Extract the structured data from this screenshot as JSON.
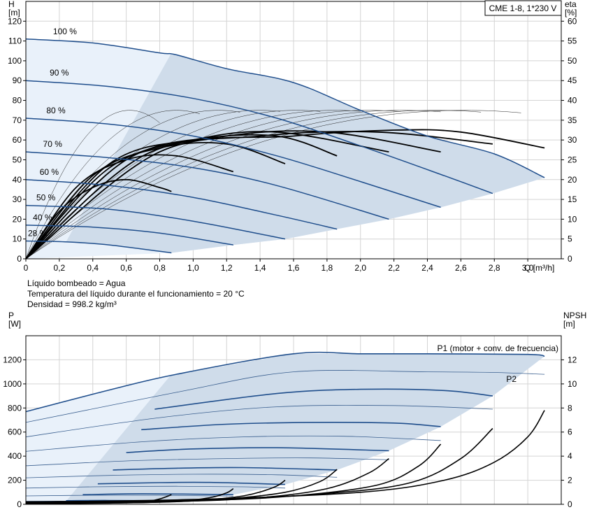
{
  "info": {
    "line1": "Líquido bombeado = Agua",
    "line2": "Temperatura del líquido durante el funcionamiento = 20 °C",
    "line3": "Densidad = 998.2 kg/m³"
  },
  "chart_data": [
    {
      "type": "line",
      "title": "CME 1-8, 1*230 V",
      "ylabel": "H\n[m]",
      "y2label": "eta\n[%]",
      "xlabel": "Q [m³/h]",
      "xlim": [
        0,
        3.2
      ],
      "ylim": [
        0,
        130
      ],
      "y2lim": [
        0,
        65
      ],
      "x_ticks": [
        "0",
        "0,2",
        "0,4",
        "0,6",
        "0,8",
        "1,0",
        "1,2",
        "1,4",
        "1,6",
        "1,8",
        "2,0",
        "2,2",
        "2,4",
        "2,6",
        "2,8",
        "3,0"
      ],
      "y_ticks": [
        0,
        10,
        20,
        30,
        40,
        50,
        60,
        70,
        80,
        90,
        100,
        110,
        120
      ],
      "y2_ticks": [
        0,
        5,
        10,
        15,
        20,
        25,
        30,
        35,
        40,
        45,
        50,
        55,
        60
      ],
      "grid": true,
      "head_curves": [
        {
          "name": "100 %",
          "x": [
            0,
            0.4,
            0.8,
            0.9,
            1.2,
            1.6,
            2.0,
            2.4,
            2.8,
            3.1
          ],
          "y": [
            111,
            109,
            104,
            103,
            96,
            89,
            75,
            62,
            53,
            41
          ]
        },
        {
          "name": "90 %",
          "x": [
            0,
            0.5,
            1.0,
            1.5,
            2.0,
            2.5,
            2.79
          ],
          "y": [
            90,
            87,
            81,
            71,
            57,
            42,
            33
          ]
        },
        {
          "name": "80 %",
          "x": [
            0,
            0.5,
            1.0,
            1.5,
            2.0,
            2.48
          ],
          "y": [
            71,
            68,
            62,
            52,
            39,
            26
          ]
        },
        {
          "name": "70 %",
          "x": [
            0,
            0.5,
            1.0,
            1.5,
            2.17
          ],
          "y": [
            54,
            51,
            46,
            37,
            20
          ]
        },
        {
          "name": "60 %",
          "x": [
            0,
            0.5,
            1.0,
            1.5,
            1.86
          ],
          "y": [
            40,
            37,
            31,
            22,
            15
          ]
        },
        {
          "name": "50 %",
          "x": [
            0,
            0.5,
            1.0,
            1.55
          ],
          "y": [
            27,
            25,
            19,
            10
          ]
        },
        {
          "name": "40 %",
          "x": [
            0,
            0.4,
            0.8,
            1.24
          ],
          "y": [
            17,
            16,
            13,
            7
          ]
        },
        {
          "name": "28 %",
          "x": [
            0,
            0.25,
            0.5,
            0.87
          ],
          "y": [
            9,
            8.5,
            7,
            3
          ]
        }
      ],
      "eta_curves": [
        {
          "x": [
            0,
            0.2,
            0.4,
            0.6,
            0.8,
            0.87
          ],
          "y": [
            0,
            12,
            18,
            20,
            18,
            17
          ]
        },
        {
          "x": [
            0,
            0.3,
            0.6,
            0.9,
            1.24
          ],
          "y": [
            0,
            18,
            25,
            26,
            22
          ]
        },
        {
          "x": [
            0,
            0.4,
            0.8,
            1.2,
            1.55
          ],
          "y": [
            0,
            21,
            28,
            29,
            24
          ]
        },
        {
          "x": [
            0,
            0.5,
            1.0,
            1.5,
            1.86
          ],
          "y": [
            0,
            24,
            30,
            31,
            26
          ]
        },
        {
          "x": [
            0,
            0.5,
            1.0,
            1.5,
            2.17
          ],
          "y": [
            0,
            23,
            30,
            32,
            27
          ]
        },
        {
          "x": [
            0,
            0.6,
            1.2,
            1.8,
            2.48
          ],
          "y": [
            0,
            25,
            31,
            32,
            27
          ]
        },
        {
          "x": [
            0,
            0.7,
            1.4,
            2.1,
            2.79
          ],
          "y": [
            0,
            26,
            31,
            32,
            29
          ]
        },
        {
          "x": [
            0,
            0.8,
            1.6,
            2.2,
            2.6,
            3.1
          ],
          "y": [
            0,
            27,
            31,
            32.5,
            32,
            28
          ]
        }
      ],
      "curve_labels": [
        "100 %",
        "90 %",
        "80 %",
        "70 %",
        "60 %",
        "50 %",
        "40 %",
        "28 %"
      ]
    },
    {
      "type": "line",
      "ylabel": "P\n[W]",
      "y2label": "NPSH\n[m]",
      "xlim": [
        0,
        3.2
      ],
      "ylim": [
        0,
        1400
      ],
      "y2lim": [
        0,
        14
      ],
      "y_ticks": [
        0,
        200,
        400,
        600,
        800,
        1000,
        1200
      ],
      "y2_ticks": [
        0,
        2,
        4,
        6,
        8,
        10,
        12
      ],
      "grid": true,
      "series_labels": {
        "p1": "P1 (motor + conv. de frecuencia)",
        "p2": "P2"
      },
      "p1_curves": [
        {
          "x": [
            0,
            0.5,
            0.9,
            1.6,
            2.0,
            2.4,
            3.0,
            3.1
          ],
          "y": [
            770,
            950,
            1080,
            1250,
            1250,
            1250,
            1245,
            1230
          ]
        },
        {
          "x": [
            0.77,
            1.5,
            2.0,
            2.5,
            2.79
          ],
          "y": [
            790,
            920,
            955,
            945,
            900
          ]
        },
        {
          "x": [
            0.69,
            1.2,
            1.7,
            2.2,
            2.48
          ],
          "y": [
            620,
            665,
            680,
            675,
            645
          ]
        },
        {
          "x": [
            0.6,
            1.0,
            1.5,
            2.17
          ],
          "y": [
            430,
            460,
            470,
            445
          ]
        },
        {
          "x": [
            0.52,
            0.9,
            1.3,
            1.86
          ],
          "y": [
            285,
            300,
            305,
            285
          ]
        },
        {
          "x": [
            0.43,
            0.8,
            1.1,
            1.55
          ],
          "y": [
            170,
            180,
            182,
            165
          ]
        },
        {
          "x": [
            0.34,
            0.7,
            1.24
          ],
          "y": [
            80,
            88,
            80
          ]
        },
        {
          "x": [
            0.24,
            0.5,
            0.87
          ],
          "y": [
            30,
            32,
            28
          ]
        }
      ],
      "p2_curves": [
        {
          "x": [
            0,
            0.9,
            1.6,
            2.4,
            2.8,
            3.1
          ],
          "y": [
            680,
            930,
            1100,
            1100,
            1095,
            1080
          ]
        },
        {
          "x": [
            0,
            0.8,
            1.5,
            2.2,
            2.79
          ],
          "y": [
            560,
            720,
            810,
            820,
            790
          ]
        },
        {
          "x": [
            0,
            0.7,
            1.3,
            1.9,
            2.48
          ],
          "y": [
            440,
            520,
            560,
            565,
            530
          ]
        },
        {
          "x": [
            0,
            0.6,
            1.2,
            1.7,
            2.17
          ],
          "y": [
            320,
            360,
            380,
            385,
            370
          ]
        },
        {
          "x": [
            0,
            0.5,
            1.0,
            1.5,
            1.86
          ],
          "y": [
            220,
            240,
            250,
            245,
            225
          ]
        },
        {
          "x": [
            0,
            0.4,
            0.9,
            1.3,
            1.55
          ],
          "y": [
            135,
            145,
            150,
            145,
            135
          ]
        },
        {
          "x": [
            0,
            0.4,
            0.8,
            1.24
          ],
          "y": [
            70,
            75,
            75,
            68
          ]
        },
        {
          "x": [
            0,
            0.3,
            0.6,
            0.87
          ],
          "y": [
            25,
            27,
            26,
            22
          ]
        }
      ],
      "npsh_curves": [
        {
          "x": [
            0,
            1.0,
            2.0,
            2.5,
            2.8,
            3.0,
            3.1
          ],
          "y": [
            0.2,
            0.4,
            1.0,
            2.0,
            3.5,
            5.6,
            7.8
          ]
        },
        {
          "x": [
            0,
            1.0,
            1.8,
            2.3,
            2.6,
            2.79
          ],
          "y": [
            0.2,
            0.35,
            0.9,
            1.8,
            3.8,
            6.3
          ]
        },
        {
          "x": [
            0,
            1.0,
            1.6,
            2.1,
            2.35,
            2.48
          ],
          "y": [
            0.2,
            0.3,
            0.7,
            1.6,
            3.2,
            5.0
          ]
        },
        {
          "x": [
            0,
            0.9,
            1.4,
            1.8,
            2.05,
            2.17
          ],
          "y": [
            0.15,
            0.25,
            0.55,
            1.3,
            2.6,
            3.8
          ]
        },
        {
          "x": [
            0,
            0.8,
            1.2,
            1.55,
            1.76,
            1.86
          ],
          "y": [
            0.1,
            0.2,
            0.45,
            1.0,
            1.9,
            2.9
          ]
        },
        {
          "x": [
            0,
            0.7,
            1.0,
            1.3,
            1.48,
            1.55
          ],
          "y": [
            0.1,
            0.15,
            0.3,
            0.7,
            1.4,
            2.0
          ]
        },
        {
          "x": [
            0,
            0.6,
            0.9,
            1.1,
            1.2,
            1.24
          ],
          "y": [
            0.1,
            0.12,
            0.25,
            0.55,
            0.95,
            1.3
          ]
        },
        {
          "x": [
            0,
            0.5,
            0.7,
            0.8,
            0.87
          ],
          "y": [
            0.05,
            0.1,
            0.2,
            0.45,
            0.8
          ]
        }
      ]
    }
  ]
}
